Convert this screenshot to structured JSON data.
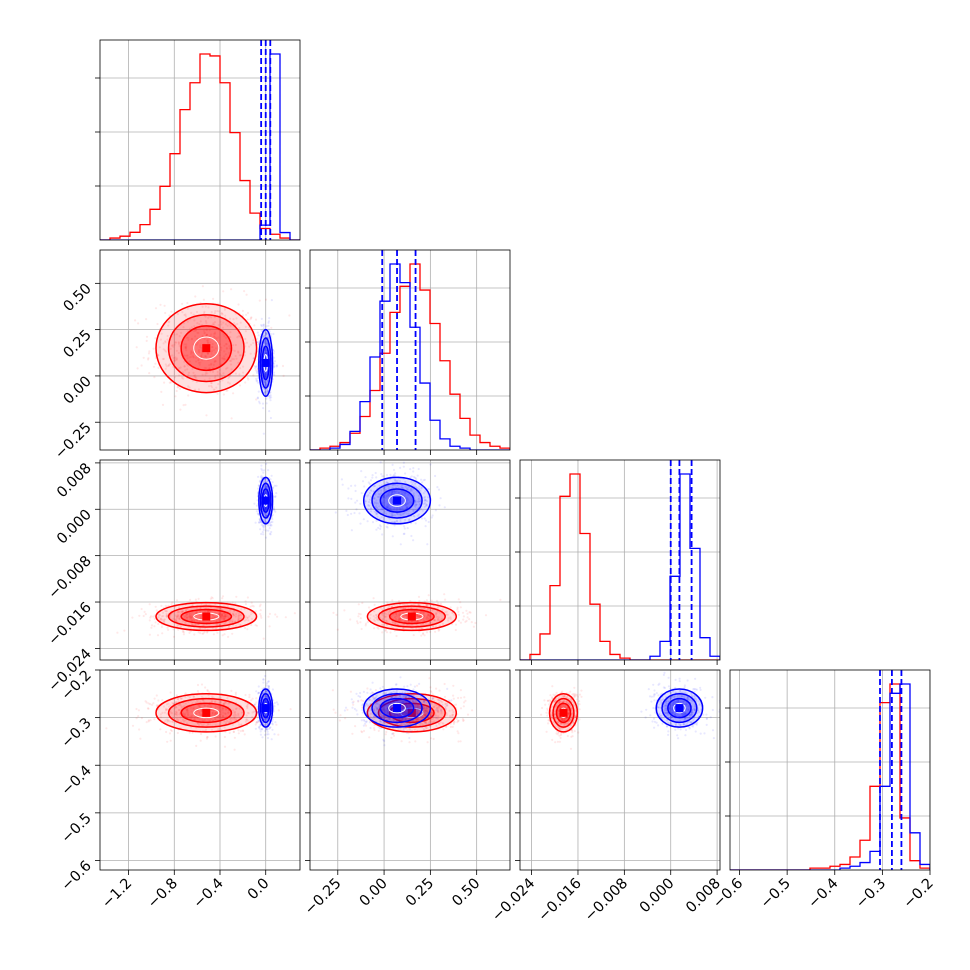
{
  "colors": {
    "series_a": "#ff0000",
    "series_b": "#0000ff",
    "grid": "#b0b0b0"
  },
  "chart_data": {
    "type": "corner",
    "grid": true,
    "parameters": [
      {
        "range": [
          -1.45,
          0.3
        ],
        "ticks": [
          -1.2,
          -0.8,
          -0.4,
          0.0
        ],
        "tick_labels": [
          "−1.2",
          "−0.8",
          "−0.4",
          "0.0"
        ]
      },
      {
        "range": [
          -0.4,
          0.68
        ],
        "ticks": [
          -0.25,
          0.0,
          0.25,
          0.5
        ],
        "tick_labels": [
          "−0.25",
          "0.00",
          "0.25",
          "0.50"
        ]
      },
      {
        "range": [
          -0.026,
          0.0085
        ],
        "ticks": [
          -0.024,
          -0.016,
          -0.008,
          0.0,
          0.008
        ],
        "tick_labels": [
          "−0.024",
          "−0.016",
          "−0.008",
          "0.000",
          "0.008"
        ]
      },
      {
        "range": [
          -0.62,
          -0.2
        ],
        "ticks": [
          -0.6,
          -0.5,
          -0.4,
          -0.3,
          -0.2
        ],
        "tick_labels": [
          "−0.6",
          "−0.5",
          "−0.4",
          "−0.3",
          "−0.2"
        ]
      }
    ],
    "series": [
      {
        "color": "#ff0000",
        "mean": [
          -0.52,
          0.15,
          -0.0185,
          -0.29
        ],
        "sd": [
          0.22,
          0.12,
          0.0012,
          0.02
        ],
        "histograms": [
          {
            "edges": [
              -1.45,
              0.3
            ],
            "counts": [
              0,
              1,
              2,
              4,
              8,
              16,
              28,
              45,
              68,
              82,
              97,
              96,
              82,
              56,
              31,
              14,
              6,
              3,
              1,
              0
            ]
          },
          {
            "edges": [
              -0.4,
              0.68
            ],
            "counts": [
              0,
              1,
              2,
              4,
              9,
              18,
              32,
              52,
              74,
              88,
              100,
              86,
              68,
              48,
              30,
              17,
              8,
              4,
              2,
              1
            ]
          },
          {
            "edges": [
              -0.026,
              0.0085
            ],
            "counts": [
              0,
              3,
              14,
              40,
              88,
              100,
              68,
              30,
              10,
              3,
              1,
              0,
              0,
              0,
              0,
              0,
              0,
              0,
              0,
              0
            ]
          },
          {
            "edges": [
              -0.62,
              -0.2
            ],
            "counts": [
              0,
              0,
              0,
              0,
              0,
              0,
              0,
              0,
              1,
              1,
              2,
              3,
              7,
              16,
              45,
              90,
              100,
              28,
              5,
              1
            ]
          }
        ]
      },
      {
        "color": "#0000ff",
        "mean": [
          0.0,
          0.07,
          0.0015,
          -0.28
        ],
        "sd": [
          0.03,
          0.09,
          0.002,
          0.02
        ],
        "quantiles": [
          [
            -0.04,
            0.0,
            0.04
          ],
          [
            -0.01,
            0.07,
            0.17
          ],
          [
            0.0,
            0.0015,
            0.0036
          ],
          [
            -0.305,
            -0.28,
            -0.26
          ]
        ],
        "histograms": [
          {
            "edges": [
              -1.45,
              0.3
            ],
            "counts": [
              0,
              0,
              0,
              0,
              0,
              0,
              0,
              0,
              0,
              0,
              0,
              0,
              0,
              0,
              0,
              0,
              8,
              100,
              4,
              0
            ]
          },
          {
            "edges": [
              -0.4,
              0.68
            ],
            "counts": [
              0,
              0,
              1,
              3,
              10,
              26,
              50,
              80,
              100,
              90,
              66,
              36,
              16,
              6,
              2,
              1,
              0,
              0,
              0,
              0
            ]
          },
          {
            "edges": [
              -0.026,
              0.0085
            ],
            "counts": [
              0,
              0,
              0,
              0,
              0,
              0,
              0,
              0,
              0,
              0,
              0,
              0,
              0,
              2,
              10,
              45,
              100,
              60,
              12,
              2
            ]
          },
          {
            "edges": [
              -0.62,
              -0.2
            ],
            "counts": [
              0,
              0,
              0,
              0,
              0,
              0,
              0,
              0,
              0,
              0,
              0,
              1,
              2,
              4,
              10,
              45,
              95,
              100,
              20,
              3
            ]
          }
        ]
      }
    ]
  }
}
